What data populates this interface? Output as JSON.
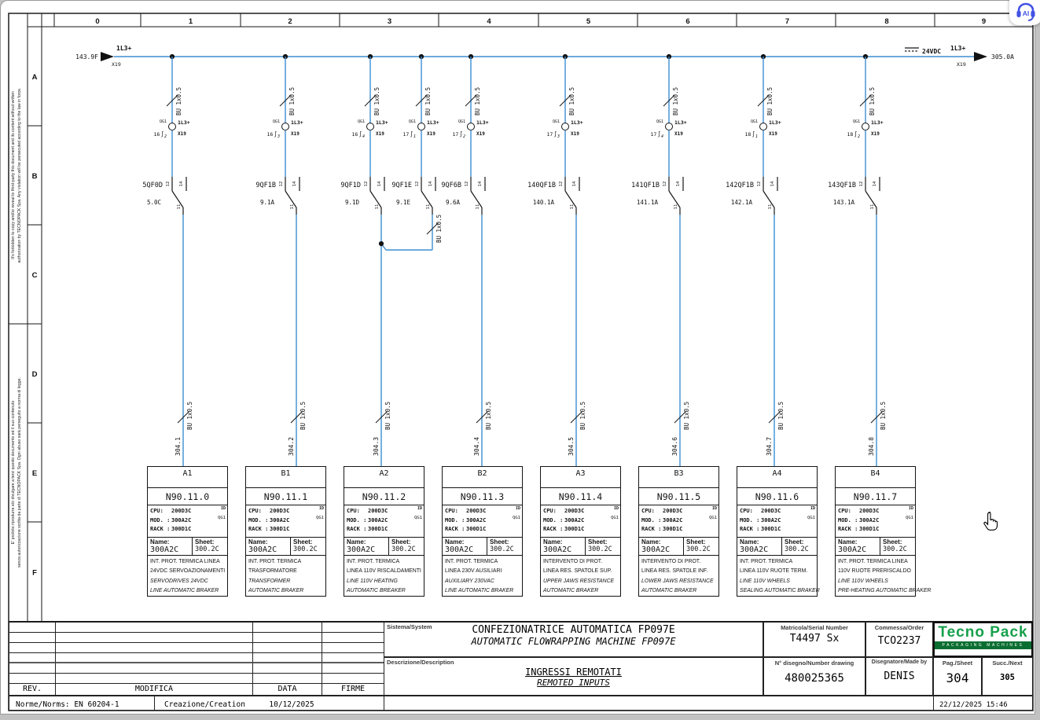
{
  "overlay": {
    "ai_button": "AI"
  },
  "frame": {
    "ruler": [
      "0",
      "1",
      "2",
      "3",
      "4",
      "5",
      "6",
      "7",
      "8",
      "9"
    ],
    "rows": [
      "A",
      "B",
      "C",
      "D",
      "E",
      "F"
    ],
    "legal_en": [
      "It's forbidden to copy and/or reveal to third-party this document and its content without written",
      "authorization by TECNOPACK Spa. Any violation will be persecuted according to the law in force."
    ],
    "legal_it": [
      "E' proibito riprodurre e/o divulgare a terzi questo documento ed il suo contenuto",
      "senza autorizzazione scritta da parte di TECNOPACK Spa. Ogni abuso sarà perseguito a norma di legge."
    ]
  },
  "bus": {
    "left_ref": "143.9F",
    "left_net": "1L3+",
    "left_conn": "X19",
    "dc_label": "24VDC",
    "right_net": "1L3+",
    "right_conn": "X19",
    "right_ref": "305.0A"
  },
  "branch_common": {
    "t_nc": "12",
    "t_no": "14",
    "t_com": "11"
  },
  "branches": [
    {
      "name": "5QF0D",
      "ref": "5.0C",
      "cable": "BU 1x0.5",
      "conn_dev": "QG1",
      "pin_row": "16",
      "pin": "2",
      "net": "1L3+",
      "conn": "X19"
    },
    {
      "name": "9QF1B",
      "ref": "9.1A",
      "cable": "BU 1x0.5",
      "conn_dev": "QG1",
      "pin_row": "16",
      "pin": "3",
      "net": "1L3+",
      "conn": "X19"
    },
    {
      "name": "9QF1D",
      "ref": "9.1D",
      "cable": "BU 1x0.5",
      "conn_dev": "QG1",
      "pin_row": "16",
      "pin": "4",
      "net": "1L3+",
      "conn": "X19"
    },
    {
      "name": "9QF1E",
      "ref": "9.1E",
      "cable": "BU 1x0.5",
      "conn_dev": "QG1",
      "pin_row": "17",
      "pin": "1",
      "net": "1L3+",
      "conn": "X19"
    },
    {
      "name": "9QF6B",
      "ref": "9.6A",
      "cable": "BU 1x0.5",
      "conn_dev": "QG1",
      "pin_row": "17",
      "pin": "2",
      "net": "1L3+",
      "conn": "X19"
    },
    {
      "name": "140QF1B",
      "ref": "140.1A",
      "cable": "BU 1x0.5",
      "conn_dev": "QG1",
      "pin_row": "17",
      "pin": "3",
      "net": "1L3+",
      "conn": "X19"
    },
    {
      "name": "141QF1B",
      "ref": "141.1A",
      "cable": "BU 1x0.5",
      "conn_dev": "QG1",
      "pin_row": "17",
      "pin": "4",
      "net": "1L3+",
      "conn": "X19"
    },
    {
      "name": "142QF1B",
      "ref": "142.1A",
      "cable": "BU 1x0.5",
      "conn_dev": "QG1",
      "pin_row": "18",
      "pin": "1",
      "net": "1L3+",
      "conn": "X19"
    },
    {
      "name": "143QF1B",
      "ref": "143.1A",
      "cable": "BU 1x0.5",
      "conn_dev": "QG1",
      "pin_row": "18",
      "pin": "2",
      "net": "1L3+",
      "conn": "X19"
    }
  ],
  "merge_cable": "BU 1x0.5",
  "outputs": [
    {
      "wire": "304.1",
      "cable": "BU 1x0.5"
    },
    {
      "wire": "304.2",
      "cable": "BU 1x0.5"
    },
    {
      "wire": "304.3",
      "cable": "BU 1x0.5"
    },
    {
      "wire": "304.4",
      "cable": "BU 1x0.5"
    },
    {
      "wire": "304.5",
      "cable": "BU 1x0.5"
    },
    {
      "wire": "304.6",
      "cable": "BU 1x0.5"
    },
    {
      "wire": "304.7",
      "cable": "BU 1x0.5"
    },
    {
      "wire": "304.8",
      "cable": "BU 1x0.5"
    }
  ],
  "block_common": {
    "id_label": "ID",
    "qg_ref": "QG1",
    "cpu_label": "CPU:",
    "cpu_value": "200D3C",
    "mod_label": "MOD. :",
    "mod_value": "300A2C",
    "rack_label": "RACK :",
    "rack_value": "300D1C",
    "name_label": "Name:",
    "name_value": "300A2C",
    "sheet_label": "Sheet:",
    "sheet_value": "300.2C"
  },
  "blocks": [
    {
      "tag": "A1",
      "node": "N90.11.0",
      "desc_it": [
        "INT. PROT. TERMICA LINEA",
        "24VDC SERVOAZIONAMENTI"
      ],
      "desc_en": [
        "SERVODRIVES 24VDC",
        "LINE AUTOMATIC BRAKER"
      ]
    },
    {
      "tag": "B1",
      "node": "N90.11.1",
      "desc_it": [
        "INT. PROT. TERMICA",
        "TRASFORMATORE"
      ],
      "desc_en": [
        "TRANSFORMER",
        "AUTOMATIC BRAKER"
      ]
    },
    {
      "tag": "A2",
      "node": "N90.11.2",
      "desc_it": [
        "INT. PROT. TERMICA",
        "LINEA 110V RISCALDAMENTI"
      ],
      "desc_en": [
        "LINE 110V HEATING",
        "AUTOMATIC BREAKER"
      ]
    },
    {
      "tag": "B2",
      "node": "N90.11.3",
      "desc_it": [
        "INT. PROT. TERMICA",
        "LINEA 230V AUSILIARI"
      ],
      "desc_en": [
        "AUXILIARY 230VAC",
        "LINE AUTOMATIC BRAKER"
      ]
    },
    {
      "tag": "A3",
      "node": "N90.11.4",
      "desc_it": [
        "INTERVENTO DI PROT.",
        "LINEA RES. SPATOLE SUP."
      ],
      "desc_en": [
        "UPPER JAWS RESISTANCE",
        "AUTOMATIC BRAKER"
      ]
    },
    {
      "tag": "B3",
      "node": "N90.11.5",
      "desc_it": [
        "INTERVENTO DI PROT.",
        "LINEA RES. SPATOLE INF."
      ],
      "desc_en": [
        "LOWER JAWS RESISTANCE",
        "AUTOMATIC BRAKER"
      ]
    },
    {
      "tag": "A4",
      "node": "N90.11.6",
      "desc_it": [
        "INT. PROT. TERMICA",
        "LINEA 110V RUOTE TERM."
      ],
      "desc_en": [
        "LINE 110V WHEELS",
        "SEALING AUTOMATIC BRAKER"
      ]
    },
    {
      "tag": "B4",
      "node": "N90.11.7",
      "desc_it": [
        "INT. PROT. TERMICA LINEA",
        "110V RUOTE PRERISCALDO"
      ],
      "desc_en": [
        "LINE 110V WHEELS",
        "PRE-HEATING AUTOMATIC BRAKER"
      ]
    }
  ],
  "title_block": {
    "sistema_label": "Sistema/System",
    "sistema_line1": "CONFEZIONATRICE AUTOMATICA FP097E",
    "sistema_line2": "AUTOMATIC FLOWRAPPING MACHINE FP097E",
    "descrizione_label": "Descrizione/Description",
    "descrizione_line1": "INGRESSI REMOTATI",
    "descrizione_line2": "REMOTED INPUTS",
    "matricola_label": "Matricola/Serial Number",
    "matricola_value": "T4497 Sx",
    "commessa_label": "Commessa/Order",
    "commessa_value": "TCO2237",
    "logo_text": "Tecno Pack",
    "logo_sub": "PACKAGING MACHINES",
    "disegno_label": "N° disegno/Number drawing",
    "disegno_value": "480025365",
    "disegnatore_label": "Disegnatore/Made by",
    "disegnatore_value": "DENIS",
    "pag_label": "Pag./Sheet",
    "pag_value": "304",
    "succ_label": "Succ./Next",
    "succ_value": "305",
    "rev_label": "REV.",
    "modifica_label": "MODIFICA",
    "data_label": "DATA",
    "firme_label": "FIRME",
    "norme": "Norme/Norms: EN 60204-1",
    "creazione_label": "Creazione/Creation",
    "creazione_date": "10/12/2025",
    "print_datetime": "22/12/2025 15:46"
  },
  "colors": {
    "wire_blue": "#3d8ed2",
    "logo_green": "#16a04b",
    "logo_band": "#0b6e31"
  }
}
